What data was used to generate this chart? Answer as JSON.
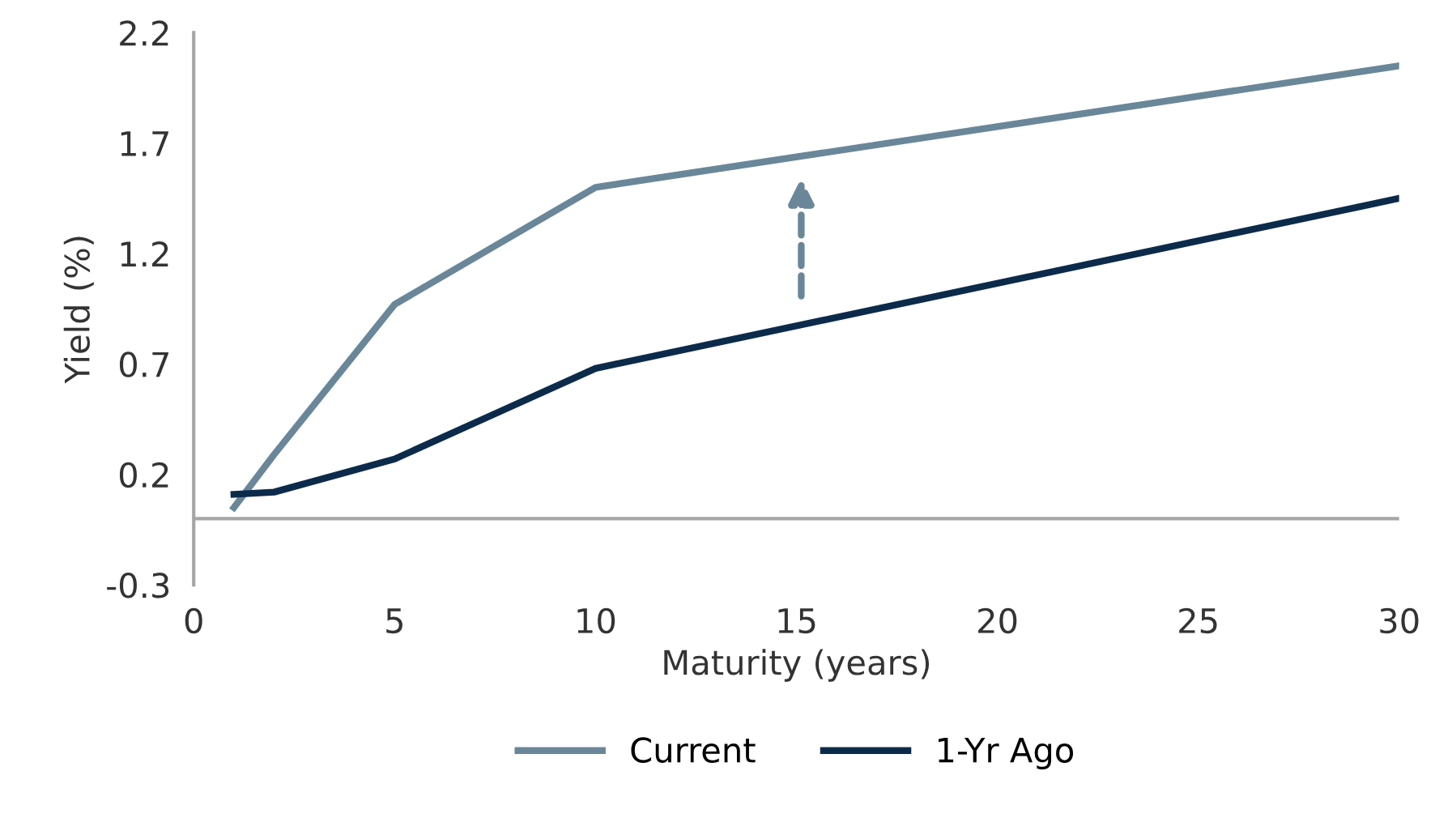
{
  "chart_data": {
    "type": "line",
    "xlabel": "Maturity (years)",
    "ylabel": "Yield (%)",
    "x": [
      1,
      2,
      5,
      10,
      30
    ],
    "series": [
      {
        "name": "Current",
        "color": "#6a8799",
        "values": [
          0.05,
          0.29,
          0.97,
          1.5,
          2.05
        ]
      },
      {
        "name": "1-Yr Ago",
        "color": "#0c2b4b",
        "values": [
          0.11,
          0.12,
          0.27,
          0.68,
          1.45
        ]
      }
    ],
    "xlim": [
      0,
      30
    ],
    "xticks": [
      0,
      5,
      10,
      15,
      20,
      25,
      30
    ],
    "ylim": [
      -0.3,
      2.2
    ],
    "yticks": [
      -0.3,
      0.2,
      0.7,
      1.2,
      1.7,
      2.2
    ],
    "ref_lines": [
      {
        "axis": "y",
        "value": 0,
        "color": "#a6a6a6"
      }
    ],
    "legend": "bottom",
    "grid": false
  }
}
